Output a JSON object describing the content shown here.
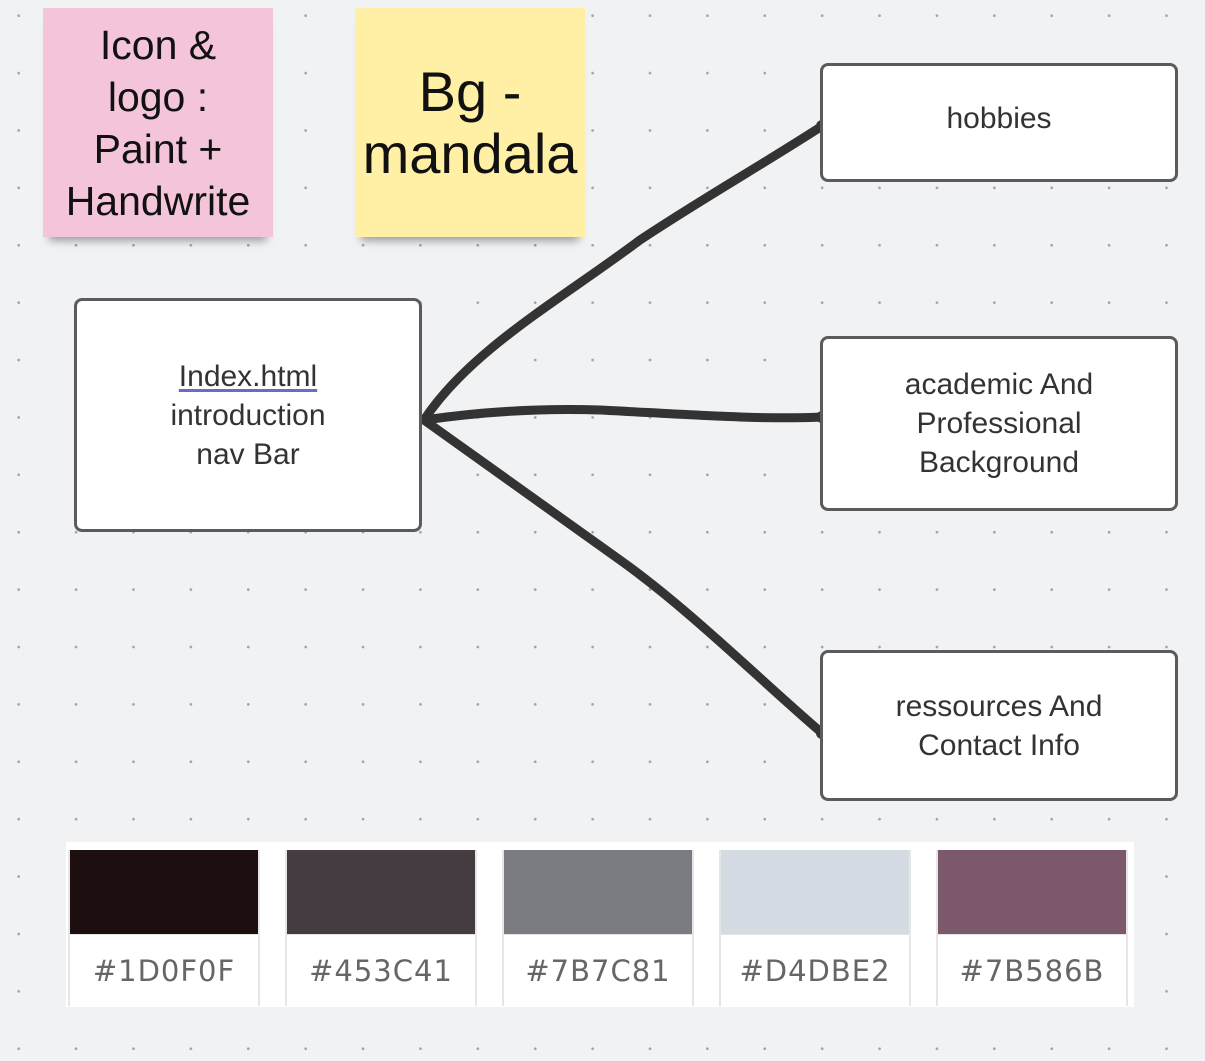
{
  "sticky_notes": {
    "icon_logo": {
      "lines": [
        "Icon &",
        "logo :",
        "Paint +",
        "Handwrite"
      ],
      "color": "#f4c5da"
    },
    "background": {
      "lines": [
        "Bg -",
        "mandala"
      ],
      "color": "#fff0a6"
    }
  },
  "nodes": {
    "index": {
      "link": "Index.html",
      "lines": [
        "introduction",
        "nav Bar"
      ]
    },
    "hobbies": {
      "lines": [
        "hobbies"
      ]
    },
    "academic": {
      "lines": [
        "academic And",
        "Professional",
        "Background"
      ]
    },
    "resources": {
      "lines": [
        "ressources And",
        "Contact Info"
      ]
    }
  },
  "palette": {
    "swatches": [
      {
        "color": "#1D0F0F",
        "label": "#1D0F0F"
      },
      {
        "color": "#453C41",
        "label": "#453C41"
      },
      {
        "color": "#7B7C81",
        "label": "#7B7C81"
      },
      {
        "color": "#D4DBE2",
        "label": "#D4DBE2"
      },
      {
        "color": "#7B586B",
        "label": "#7B586B"
      }
    ]
  }
}
